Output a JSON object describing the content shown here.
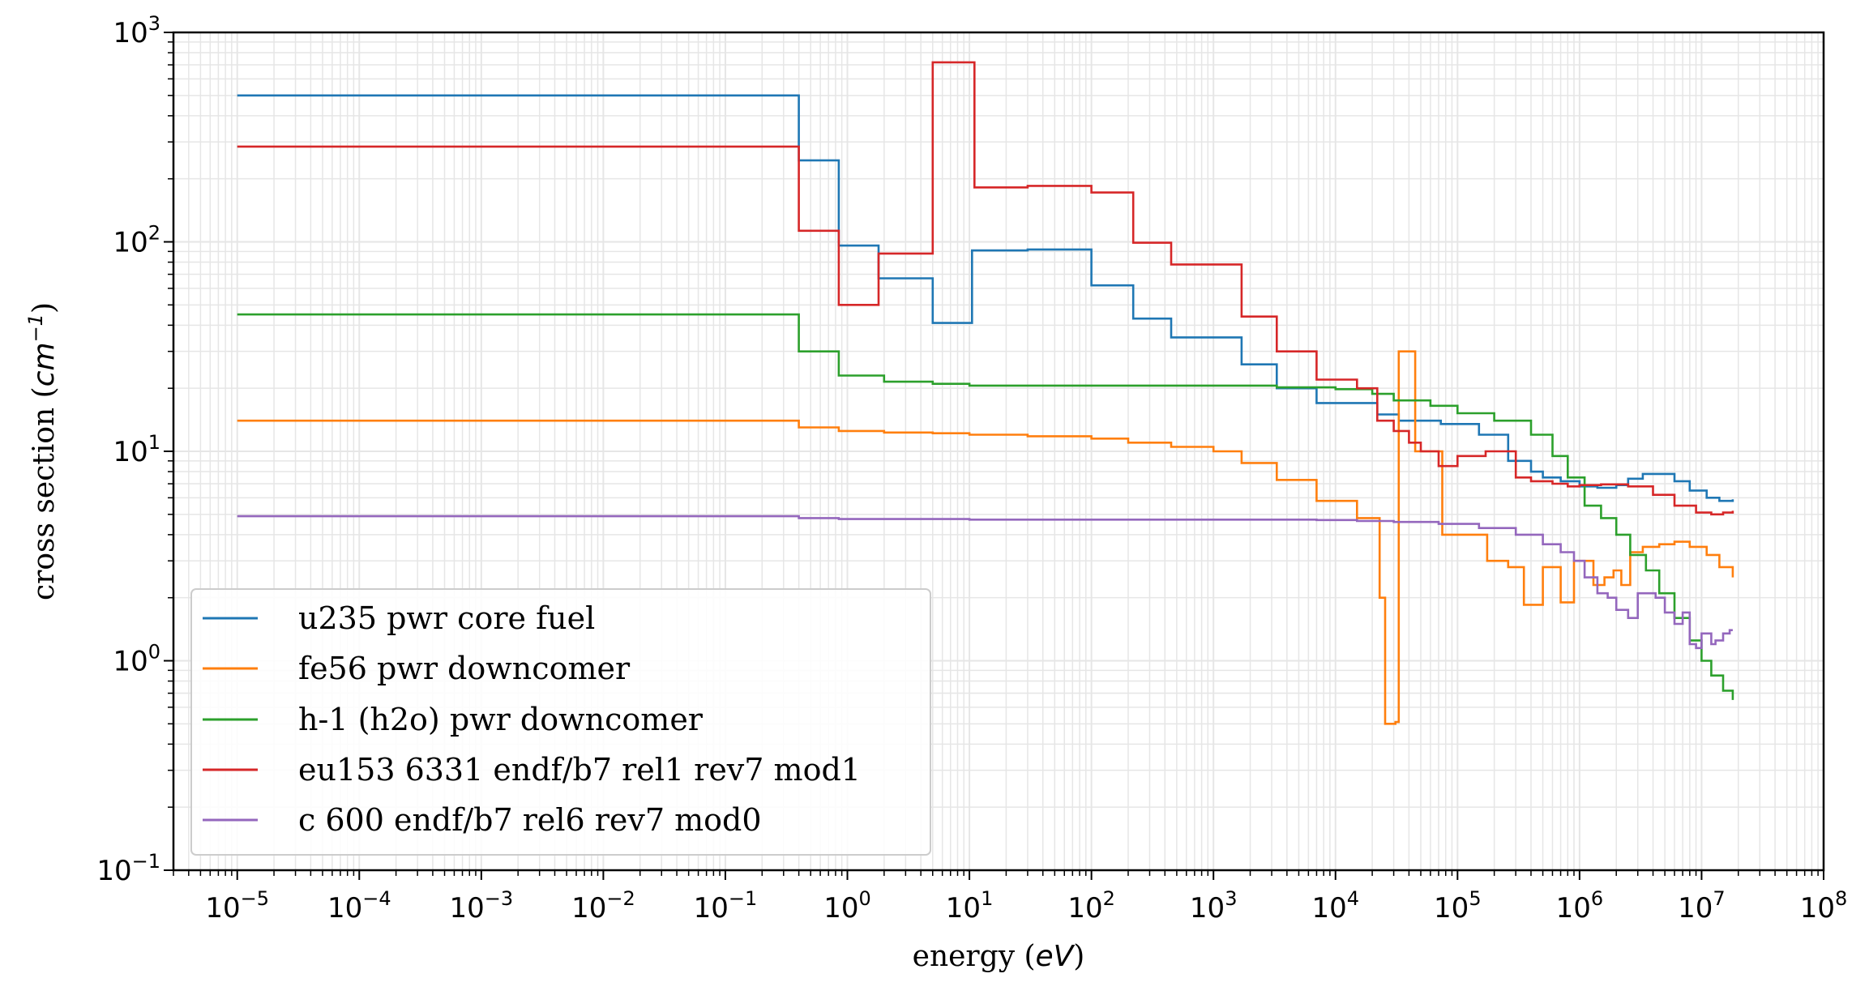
{
  "chart_data": {
    "type": "line",
    "step": "post",
    "xscale": "log",
    "yscale": "log",
    "xlim": [
      3e-06,
      100000000.0
    ],
    "ylim": [
      0.1,
      1000
    ],
    "xlabel": {
      "prefix": "energy (",
      "italic": "eV",
      "suffix": ")"
    },
    "ylabel": {
      "prefix": "cross section (",
      "italic": "cm",
      "sup": "−1",
      "suffix": ")"
    },
    "grid": true,
    "legend_position": "lower-left",
    "x_ticks": [
      {
        "base": "10",
        "exp": "−5"
      },
      {
        "base": "10",
        "exp": "−4"
      },
      {
        "base": "10",
        "exp": "−3"
      },
      {
        "base": "10",
        "exp": "−2"
      },
      {
        "base": "10",
        "exp": "−1"
      },
      {
        "base": "10",
        "exp": "0"
      },
      {
        "base": "10",
        "exp": "1"
      },
      {
        "base": "10",
        "exp": "2"
      },
      {
        "base": "10",
        "exp": "3"
      },
      {
        "base": "10",
        "exp": "4"
      },
      {
        "base": "10",
        "exp": "5"
      },
      {
        "base": "10",
        "exp": "6"
      },
      {
        "base": "10",
        "exp": "7"
      },
      {
        "base": "10",
        "exp": "8"
      }
    ],
    "y_ticks": [
      {
        "base": "10",
        "exp": "−1"
      },
      {
        "base": "10",
        "exp": "0"
      },
      {
        "base": "10",
        "exp": "1"
      },
      {
        "base": "10",
        "exp": "2"
      },
      {
        "base": "10",
        "exp": "3"
      }
    ],
    "series": [
      {
        "name": "u235 pwr core fuel",
        "color": "#1f77b4",
        "points": [
          [
            1e-05,
            500
          ],
          [
            0.4,
            245
          ],
          [
            0.85,
            96
          ],
          [
            1.8,
            67
          ],
          [
            5,
            41
          ],
          [
            10.5,
            91
          ],
          [
            30,
            92
          ],
          [
            100,
            62
          ],
          [
            220,
            43
          ],
          [
            450,
            35
          ],
          [
            1700,
            26
          ],
          [
            3300,
            20
          ],
          [
            7000,
            17
          ],
          [
            22000,
            15
          ],
          [
            33000,
            14
          ],
          [
            73000,
            13.5
          ],
          [
            150000,
            12
          ],
          [
            260000,
            9
          ],
          [
            400000,
            8
          ],
          [
            500000,
            7.5
          ],
          [
            700000,
            7.2
          ],
          [
            1000000,
            6.8
          ],
          [
            1400000,
            6.7
          ],
          [
            2000000,
            6.9
          ],
          [
            2500000,
            7.4
          ],
          [
            3300000,
            7.8
          ],
          [
            4500000,
            7.8
          ],
          [
            6000000,
            7.2
          ],
          [
            8000000,
            6.5
          ],
          [
            11000000,
            6
          ],
          [
            14000000,
            5.8
          ],
          [
            18000000,
            5.9
          ]
        ]
      },
      {
        "name": "fe56 pwr downcomer",
        "color": "#ff7f0e",
        "points": [
          [
            1e-05,
            14
          ],
          [
            0.4,
            13
          ],
          [
            0.85,
            12.5
          ],
          [
            2,
            12.3
          ],
          [
            5,
            12.2
          ],
          [
            10,
            12
          ],
          [
            30,
            11.8
          ],
          [
            100,
            11.5
          ],
          [
            200,
            11
          ],
          [
            450,
            10.5
          ],
          [
            1000,
            10
          ],
          [
            1700,
            8.8
          ],
          [
            3300,
            7.3
          ],
          [
            7000,
            5.8
          ],
          [
            15000,
            4.8
          ],
          [
            23000,
            2
          ],
          [
            25500,
            0.5
          ],
          [
            31000,
            0.51
          ],
          [
            33000,
            30
          ],
          [
            45000,
            10
          ],
          [
            75000,
            4
          ],
          [
            175000,
            3
          ],
          [
            260000,
            2.8
          ],
          [
            350000,
            1.85
          ],
          [
            500000,
            2.8
          ],
          [
            700000,
            1.9
          ],
          [
            900000,
            3
          ],
          [
            1300000,
            2.3
          ],
          [
            1600000,
            2.5
          ],
          [
            1900000,
            2.7
          ],
          [
            2200000,
            2.3
          ],
          [
            2600000,
            3.3
          ],
          [
            3300000,
            3.5
          ],
          [
            4500000,
            3.6
          ],
          [
            6000000,
            3.7
          ],
          [
            8000000,
            3.5
          ],
          [
            11000000,
            3.2
          ],
          [
            14000000,
            2.8
          ],
          [
            18000000,
            2.5
          ]
        ]
      },
      {
        "name": "h-1 (h2o) pwr downcomer",
        "color": "#2ca02c",
        "points": [
          [
            1e-05,
            45
          ],
          [
            0.4,
            30
          ],
          [
            0.85,
            23
          ],
          [
            2,
            21.5
          ],
          [
            5,
            21
          ],
          [
            10,
            20.6
          ],
          [
            3300,
            20.2
          ],
          [
            10000,
            19.8
          ],
          [
            20000,
            18.8
          ],
          [
            30000,
            17.5
          ],
          [
            60000,
            16.5
          ],
          [
            100000,
            15.2
          ],
          [
            200000,
            14
          ],
          [
            400000,
            12
          ],
          [
            600000,
            9.5
          ],
          [
            800000,
            7.5
          ],
          [
            1100000,
            5.5
          ],
          [
            1500000,
            4.8
          ],
          [
            2000000,
            4
          ],
          [
            2600000,
            3.2
          ],
          [
            3500000,
            2.7
          ],
          [
            4500000,
            2.1
          ],
          [
            6000000,
            1.6
          ],
          [
            8000000,
            1.25
          ],
          [
            10000000,
            1
          ],
          [
            12000000,
            0.85
          ],
          [
            15000000,
            0.72
          ],
          [
            18000000,
            0.65
          ]
        ]
      },
      {
        "name": "eu153 6331 endf/b7 rel1 rev7 mod1",
        "color": "#d62728",
        "points": [
          [
            1e-05,
            285
          ],
          [
            0.4,
            113
          ],
          [
            0.85,
            50
          ],
          [
            1.8,
            88
          ],
          [
            5,
            720
          ],
          [
            11,
            182
          ],
          [
            30,
            185
          ],
          [
            100,
            172
          ],
          [
            220,
            99
          ],
          [
            450,
            78
          ],
          [
            1700,
            44
          ],
          [
            3300,
            30
          ],
          [
            7000,
            22
          ],
          [
            15000,
            20
          ],
          [
            22000,
            14
          ],
          [
            30000,
            12.5
          ],
          [
            40000,
            11
          ],
          [
            50000,
            10
          ],
          [
            70000,
            8.5
          ],
          [
            100000,
            9.5
          ],
          [
            170000,
            10
          ],
          [
            300000,
            7.5
          ],
          [
            400000,
            7.2
          ],
          [
            600000,
            7
          ],
          [
            800000,
            6.8
          ],
          [
            1000000,
            6.9
          ],
          [
            1500000,
            6.95
          ],
          [
            2500000,
            6.8
          ],
          [
            4000000,
            6.2
          ],
          [
            6000000,
            5.5
          ],
          [
            9000000,
            5.1
          ],
          [
            12000000,
            5
          ],
          [
            15000000,
            5.1
          ],
          [
            18000000,
            5.2
          ]
        ]
      },
      {
        "name": "c 600 endf/b7 rel6 rev7 mod0",
        "color": "#9467bd",
        "points": [
          [
            1e-05,
            4.9
          ],
          [
            0.4,
            4.8
          ],
          [
            0.85,
            4.75
          ],
          [
            10,
            4.72
          ],
          [
            7000,
            4.7
          ],
          [
            15000,
            4.65
          ],
          [
            30000,
            4.6
          ],
          [
            70000,
            4.5
          ],
          [
            150000,
            4.3
          ],
          [
            300000,
            4
          ],
          [
            500000,
            3.6
          ],
          [
            700000,
            3.3
          ],
          [
            900000,
            3
          ],
          [
            1100000,
            2.5
          ],
          [
            1400000,
            2.1
          ],
          [
            1700000,
            2
          ],
          [
            2000000,
            1.75
          ],
          [
            2500000,
            1.6
          ],
          [
            3000000,
            2.1
          ],
          [
            4200000,
            2
          ],
          [
            5000000,
            1.7
          ],
          [
            6000000,
            1.5
          ],
          [
            7000000,
            1.7
          ],
          [
            8000000,
            1.2
          ],
          [
            9000000,
            1.15
          ],
          [
            10000000,
            1.35
          ],
          [
            12000000,
            1.2
          ],
          [
            13000000,
            1.25
          ],
          [
            15000000,
            1.35
          ],
          [
            17000000,
            1.4
          ],
          [
            18000000,
            1.4
          ]
        ]
      }
    ]
  }
}
